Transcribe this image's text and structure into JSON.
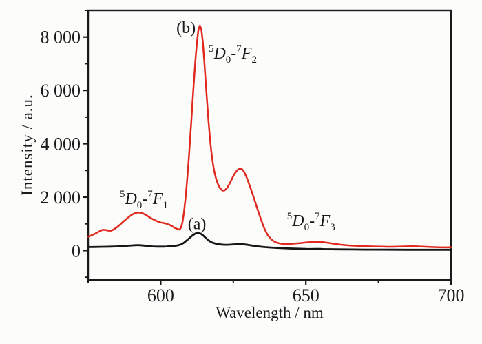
{
  "colors": {
    "background": "#fcfcfb",
    "axis": "#1a1a1a",
    "curve_a": "#161616",
    "curve_b": "#e0281e"
  },
  "chart_data": {
    "type": "line",
    "title": "",
    "xlabel": "Wavelength / nm",
    "ylabel": "Intensity / a.u.",
    "xlim": [
      575,
      700
    ],
    "ylim": [
      -1100,
      9000
    ],
    "grid": false,
    "legend": "none",
    "x_ticks": {
      "major": [
        600,
        650,
        700
      ],
      "labels": [
        "600",
        "650",
        "700"
      ],
      "minor": [
        575,
        625,
        675
      ]
    },
    "y_ticks": {
      "major": [
        0,
        2000,
        4000,
        6000,
        8000
      ],
      "labels": [
        "0",
        "2 000",
        "4 000",
        "6 000",
        "8 000"
      ],
      "minor": [
        -1000,
        1000,
        3000,
        5000,
        7000,
        9000
      ]
    },
    "series": [
      {
        "id": "curve-b-red",
        "name": "(b)",
        "color": "#e0281e",
        "width": 2.5,
        "points": [
          [
            575,
            520
          ],
          [
            576,
            560
          ],
          [
            577,
            610
          ],
          [
            578,
            665
          ],
          [
            579,
            725
          ],
          [
            580,
            775
          ],
          [
            581,
            770
          ],
          [
            582,
            745
          ],
          [
            583,
            745
          ],
          [
            584,
            800
          ],
          [
            585,
            880
          ],
          [
            586,
            970
          ],
          [
            587,
            1075
          ],
          [
            588,
            1165
          ],
          [
            589,
            1255
          ],
          [
            590,
            1335
          ],
          [
            591,
            1395
          ],
          [
            592,
            1425
          ],
          [
            593,
            1420
          ],
          [
            594,
            1385
          ],
          [
            595,
            1325
          ],
          [
            596,
            1255
          ],
          [
            597,
            1190
          ],
          [
            598,
            1135
          ],
          [
            599,
            1085
          ],
          [
            600,
            1050
          ],
          [
            601,
            1030
          ],
          [
            602,
            1005
          ],
          [
            603,
            965
          ],
          [
            604,
            905
          ],
          [
            605,
            840
          ],
          [
            606,
            795
          ],
          [
            606.5,
            785
          ],
          [
            607,
            860
          ],
          [
            607.5,
            1060
          ],
          [
            608,
            1420
          ],
          [
            608.5,
            1900
          ],
          [
            609,
            2500
          ],
          [
            609.5,
            3200
          ],
          [
            610,
            3980
          ],
          [
            610.5,
            4800
          ],
          [
            611,
            5650
          ],
          [
            611.5,
            6450
          ],
          [
            612,
            7200
          ],
          [
            612.5,
            7830
          ],
          [
            613,
            8280
          ],
          [
            613.5,
            8430
          ],
          [
            614,
            8290
          ],
          [
            614.5,
            7830
          ],
          [
            615,
            7120
          ],
          [
            615.5,
            6320
          ],
          [
            616,
            5520
          ],
          [
            616.5,
            4780
          ],
          [
            617,
            4140
          ],
          [
            617.5,
            3640
          ],
          [
            618,
            3240
          ],
          [
            618.5,
            2940
          ],
          [
            619,
            2720
          ],
          [
            619.5,
            2550
          ],
          [
            620,
            2420
          ],
          [
            620.5,
            2330
          ],
          [
            621,
            2270
          ],
          [
            621.5,
            2245
          ],
          [
            622,
            2255
          ],
          [
            622.5,
            2300
          ],
          [
            623,
            2370
          ],
          [
            623.5,
            2460
          ],
          [
            624,
            2565
          ],
          [
            624.5,
            2680
          ],
          [
            625,
            2790
          ],
          [
            625.5,
            2885
          ],
          [
            626,
            2960
          ],
          [
            626.5,
            3020
          ],
          [
            627,
            3060
          ],
          [
            627.5,
            3070
          ],
          [
            628,
            3050
          ],
          [
            628.5,
            2985
          ],
          [
            629,
            2885
          ],
          [
            629.5,
            2765
          ],
          [
            630,
            2625
          ],
          [
            630.5,
            2475
          ],
          [
            631,
            2320
          ],
          [
            631.5,
            2160
          ],
          [
            632,
            2000
          ],
          [
            632.5,
            1835
          ],
          [
            633,
            1665
          ],
          [
            633.5,
            1500
          ],
          [
            634,
            1335
          ],
          [
            634.5,
            1175
          ],
          [
            635,
            1020
          ],
          [
            635.5,
            880
          ],
          [
            636,
            755
          ],
          [
            636.5,
            650
          ],
          [
            637,
            560
          ],
          [
            637.5,
            490
          ],
          [
            638,
            430
          ],
          [
            639,
            345
          ],
          [
            640,
            295
          ],
          [
            641,
            265
          ],
          [
            642,
            250
          ],
          [
            643,
            245
          ],
          [
            644,
            245
          ],
          [
            645,
            250
          ],
          [
            646,
            258
          ],
          [
            647,
            268
          ],
          [
            648,
            278
          ],
          [
            649,
            290
          ],
          [
            650,
            300
          ],
          [
            651,
            310
          ],
          [
            652,
            318
          ],
          [
            653,
            325
          ],
          [
            654,
            328
          ],
          [
            655,
            322
          ],
          [
            656,
            312
          ],
          [
            657,
            298
          ],
          [
            658,
            282
          ],
          [
            659,
            265
          ],
          [
            660,
            248
          ],
          [
            661,
            232
          ],
          [
            662,
            218
          ],
          [
            663,
            206
          ],
          [
            664,
            196
          ],
          [
            665,
            188
          ],
          [
            666,
            181
          ],
          [
            668,
            170
          ],
          [
            670,
            162
          ],
          [
            672,
            155
          ],
          [
            674,
            149
          ],
          [
            676,
            144
          ],
          [
            678,
            141
          ],
          [
            680,
            141
          ],
          [
            682,
            145
          ],
          [
            684,
            152
          ],
          [
            686,
            158
          ],
          [
            688,
            156
          ],
          [
            690,
            148
          ],
          [
            692,
            138
          ],
          [
            694,
            128
          ],
          [
            696,
            120
          ],
          [
            698,
            116
          ],
          [
            700,
            118
          ]
        ]
      },
      {
        "id": "curve-a-black",
        "name": "(a)",
        "color": "#161616",
        "width": 2.8,
        "points": [
          [
            575,
            130
          ],
          [
            577,
            133
          ],
          [
            579,
            137
          ],
          [
            581,
            141
          ],
          [
            583,
            146
          ],
          [
            585,
            152
          ],
          [
            587,
            163
          ],
          [
            589,
            180
          ],
          [
            590,
            190
          ],
          [
            591,
            198
          ],
          [
            592,
            203
          ],
          [
            593,
            198
          ],
          [
            594,
            187
          ],
          [
            595,
            174
          ],
          [
            596,
            163
          ],
          [
            597,
            154
          ],
          [
            598,
            148
          ],
          [
            599,
            145
          ],
          [
            600,
            144
          ],
          [
            601,
            146
          ],
          [
            602,
            151
          ],
          [
            603,
            157
          ],
          [
            604,
            165
          ],
          [
            605,
            175
          ],
          [
            606,
            193
          ],
          [
            607,
            228
          ],
          [
            608,
            290
          ],
          [
            609,
            380
          ],
          [
            610,
            475
          ],
          [
            610.5,
            525
          ],
          [
            611,
            570
          ],
          [
            611.5,
            608
          ],
          [
            612,
            638
          ],
          [
            612.5,
            652
          ],
          [
            613,
            652
          ],
          [
            613.5,
            640
          ],
          [
            614,
            615
          ],
          [
            614.5,
            575
          ],
          [
            615,
            525
          ],
          [
            615.5,
            473
          ],
          [
            616,
            423
          ],
          [
            616.5,
            378
          ],
          [
            617,
            340
          ],
          [
            617.5,
            310
          ],
          [
            618,
            287
          ],
          [
            619,
            255
          ],
          [
            620,
            235
          ],
          [
            621,
            222
          ],
          [
            622,
            216
          ],
          [
            623,
            216
          ],
          [
            624,
            221
          ],
          [
            625,
            229
          ],
          [
            626,
            236
          ],
          [
            627,
            239
          ],
          [
            628,
            236
          ],
          [
            629,
            226
          ],
          [
            630,
            211
          ],
          [
            631,
            194
          ],
          [
            632,
            177
          ],
          [
            633,
            161
          ],
          [
            634,
            148
          ],
          [
            635,
            137
          ],
          [
            636,
            127
          ],
          [
            638,
            111
          ],
          [
            640,
            98
          ],
          [
            642,
            88
          ],
          [
            644,
            79
          ],
          [
            646,
            71
          ],
          [
            648,
            64
          ],
          [
            650,
            58
          ],
          [
            652,
            55
          ],
          [
            653,
            56
          ],
          [
            654,
            57
          ],
          [
            655,
            56
          ],
          [
            656,
            53
          ],
          [
            658,
            49
          ],
          [
            660,
            45
          ],
          [
            663,
            41
          ],
          [
            666,
            38
          ],
          [
            670,
            35
          ],
          [
            675,
            33
          ],
          [
            680,
            31
          ],
          [
            685,
            30
          ],
          [
            690,
            29
          ],
          [
            695,
            28
          ],
          [
            700,
            28
          ]
        ]
      }
    ],
    "annotations": [
      {
        "id": "label-b",
        "x": 608.7,
        "y": 8350,
        "parts": [
          [
            "n",
            "(b)"
          ]
        ]
      },
      {
        "id": "transition-5D0-7F2",
        "x": 624.8,
        "y": 7400,
        "parts": [
          [
            "sup",
            "5"
          ],
          [
            "it",
            "D"
          ],
          [
            "sub",
            "0"
          ],
          [
            "n",
            "-"
          ],
          [
            "sup",
            "7"
          ],
          [
            "it",
            "F"
          ],
          [
            "sub",
            "2"
          ]
        ]
      },
      {
        "id": "transition-5D0-7F1",
        "x": 594.2,
        "y": 1950,
        "parts": [
          [
            "sup",
            "5"
          ],
          [
            "it",
            "D"
          ],
          [
            "sub",
            "0"
          ],
          [
            "n",
            "-"
          ],
          [
            "sup",
            "7"
          ],
          [
            "it",
            "F"
          ],
          [
            "sub",
            "1"
          ]
        ]
      },
      {
        "id": "label-a",
        "x": 612.5,
        "y": 1000,
        "parts": [
          [
            "n",
            "(a)"
          ]
        ]
      },
      {
        "id": "transition-5D0-7F3",
        "x": 651.8,
        "y": 1120,
        "parts": [
          [
            "sup",
            "5"
          ],
          [
            "it",
            "D"
          ],
          [
            "sub",
            "0"
          ],
          [
            "n",
            "-"
          ],
          [
            "sup",
            "7"
          ],
          [
            "it",
            "F"
          ],
          [
            "sub",
            "3"
          ]
        ]
      }
    ]
  }
}
